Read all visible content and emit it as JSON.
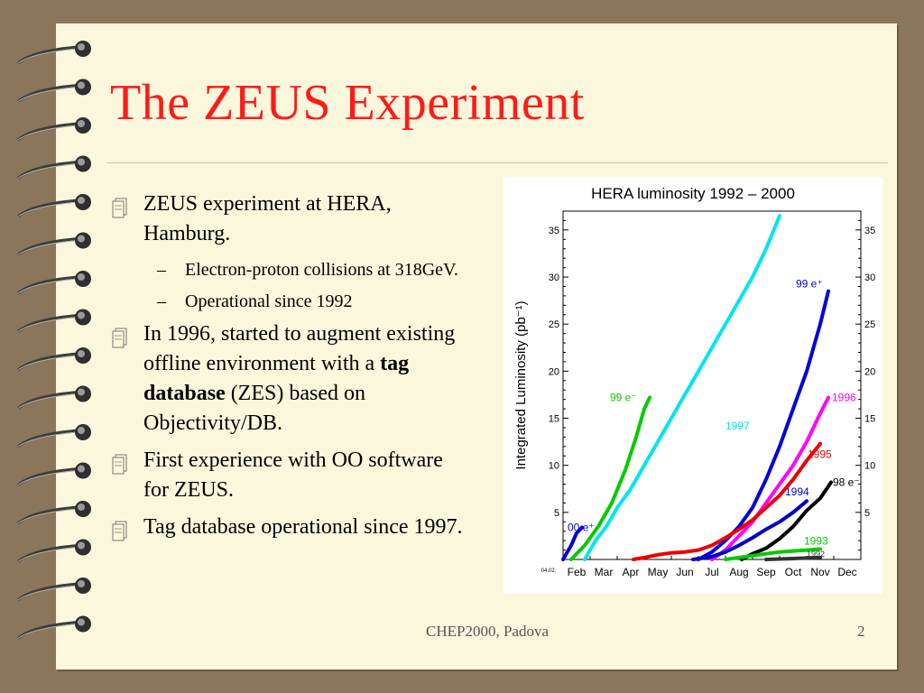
{
  "slide": {
    "title": "The ZEUS Experiment",
    "footer_center": "CHEP2000, Padova",
    "page_number": "2"
  },
  "bullets": [
    {
      "text": "ZEUS experiment at HERA, Hamburg.",
      "level": 1
    },
    {
      "text": "Electron-proton collisions at 318GeV.",
      "level": 2
    },
    {
      "text": "Operational since 1992",
      "level": 2
    },
    {
      "level": 1,
      "parts": [
        {
          "text": "In 1996, started to augment existing offline environment with a "
        },
        {
          "text": "tag database"
        },
        {
          "text": " (ZES) based on Objectivity/DB."
        }
      ]
    },
    {
      "text": "First experience with OO software for ZEUS.",
      "level": 1
    },
    {
      "text": "Tag database operational since 1997.",
      "level": 1
    }
  ],
  "chart_data": {
    "type": "line",
    "title": "HERA luminosity 1992 – 2000",
    "ylabel": "Integrated Luminosity (pb⁻¹)",
    "xlabel": "",
    "corner_label": "04.02.",
    "categories": [
      "Feb",
      "Mar",
      "Apr",
      "May",
      "Jun",
      "Jul",
      "Aug",
      "Sep",
      "Oct",
      "Nov",
      "Dec"
    ],
    "ylim": [
      0,
      37
    ],
    "yticks": [
      5,
      10,
      15,
      20,
      25,
      30,
      35
    ],
    "series": [
      {
        "name": "00 e⁺",
        "color": "#0000dd",
        "x": [
          0,
          0.3,
          0.5,
          0.7
        ],
        "y": [
          0,
          1.5,
          2.8,
          3.4
        ]
      },
      {
        "name": "99 e⁻",
        "color": "#00cc00",
        "x": [
          0.3,
          0.8,
          1.3,
          1.8,
          2.3,
          2.7,
          3.0,
          3.2
        ],
        "y": [
          0,
          1.5,
          3.5,
          6,
          9.5,
          13,
          16,
          17.2
        ]
      },
      {
        "name": "1997",
        "color": "#00e5ee",
        "x": [
          0.8,
          1.2,
          1.6,
          2.0,
          2.5,
          3.0,
          3.5,
          4.0,
          4.5,
          5.0,
          5.5,
          6.0,
          6.5,
          7.0,
          7.5,
          8.0
        ],
        "y": [
          0,
          2,
          3.5,
          5.5,
          7.5,
          10,
          12.5,
          15,
          17.5,
          20,
          22.5,
          25,
          27.5,
          30,
          33,
          36.5
        ]
      },
      {
        "name": "99 e⁺",
        "color": "#0000dd",
        "x": [
          5.0,
          5.5,
          6.0,
          6.5,
          7.0,
          7.5,
          8.0,
          8.5,
          9.0,
          9.5,
          9.8
        ],
        "y": [
          0,
          0.8,
          2,
          3.5,
          5.5,
          8.5,
          12,
          16,
          20,
          25,
          28.5
        ]
      },
      {
        "name": "1996",
        "color": "#ff00ff",
        "x": [
          5.5,
          6.0,
          6.5,
          7.0,
          7.5,
          8.0,
          8.5,
          9.0,
          9.5,
          9.8
        ],
        "y": [
          0,
          1,
          2.5,
          4,
          6,
          8,
          10,
          12.5,
          15.5,
          17.2
        ]
      },
      {
        "name": "1995",
        "color": "#ee0000",
        "x": [
          2.6,
          3.0,
          3.5,
          4.0,
          4.5,
          5.0,
          5.5,
          6.0,
          6.5,
          7.0,
          7.5,
          8.0,
          8.5,
          9.0,
          9.5
        ],
        "y": [
          0,
          0.2,
          0.5,
          0.7,
          0.8,
          1,
          1.5,
          2.3,
          3.2,
          4.2,
          5.5,
          6.8,
          8.5,
          10.5,
          12.3
        ]
      },
      {
        "name": "1994",
        "color": "#0000cc",
        "x": [
          4.8,
          5.5,
          6.0,
          6.5,
          7.0,
          7.5,
          8.0,
          8.5,
          9.0
        ],
        "y": [
          0,
          0.3,
          0.8,
          1.5,
          2.3,
          3.2,
          4,
          5,
          6.2
        ]
      },
      {
        "name": "98 e⁻",
        "color": "#000000",
        "x": [
          6.6,
          7.0,
          7.5,
          8.0,
          8.5,
          9.0,
          9.5,
          9.9
        ],
        "y": [
          0,
          0.6,
          1.2,
          2.2,
          3.5,
          5.2,
          6.5,
          8.2
        ]
      },
      {
        "name": "1993",
        "color": "#00cc00",
        "x": [
          6.0,
          6.5,
          7.0,
          7.5,
          8.0,
          8.5,
          9.0,
          9.5
        ],
        "y": [
          0,
          0.2,
          0.4,
          0.6,
          0.8,
          0.9,
          1.0,
          1.1
        ]
      },
      {
        "name": "1992",
        "color": "#333333",
        "x": [
          7.5,
          8.0,
          8.5,
          9.0,
          9.5
        ],
        "y": [
          0,
          0.05,
          0.1,
          0.15,
          0.2
        ]
      }
    ]
  }
}
